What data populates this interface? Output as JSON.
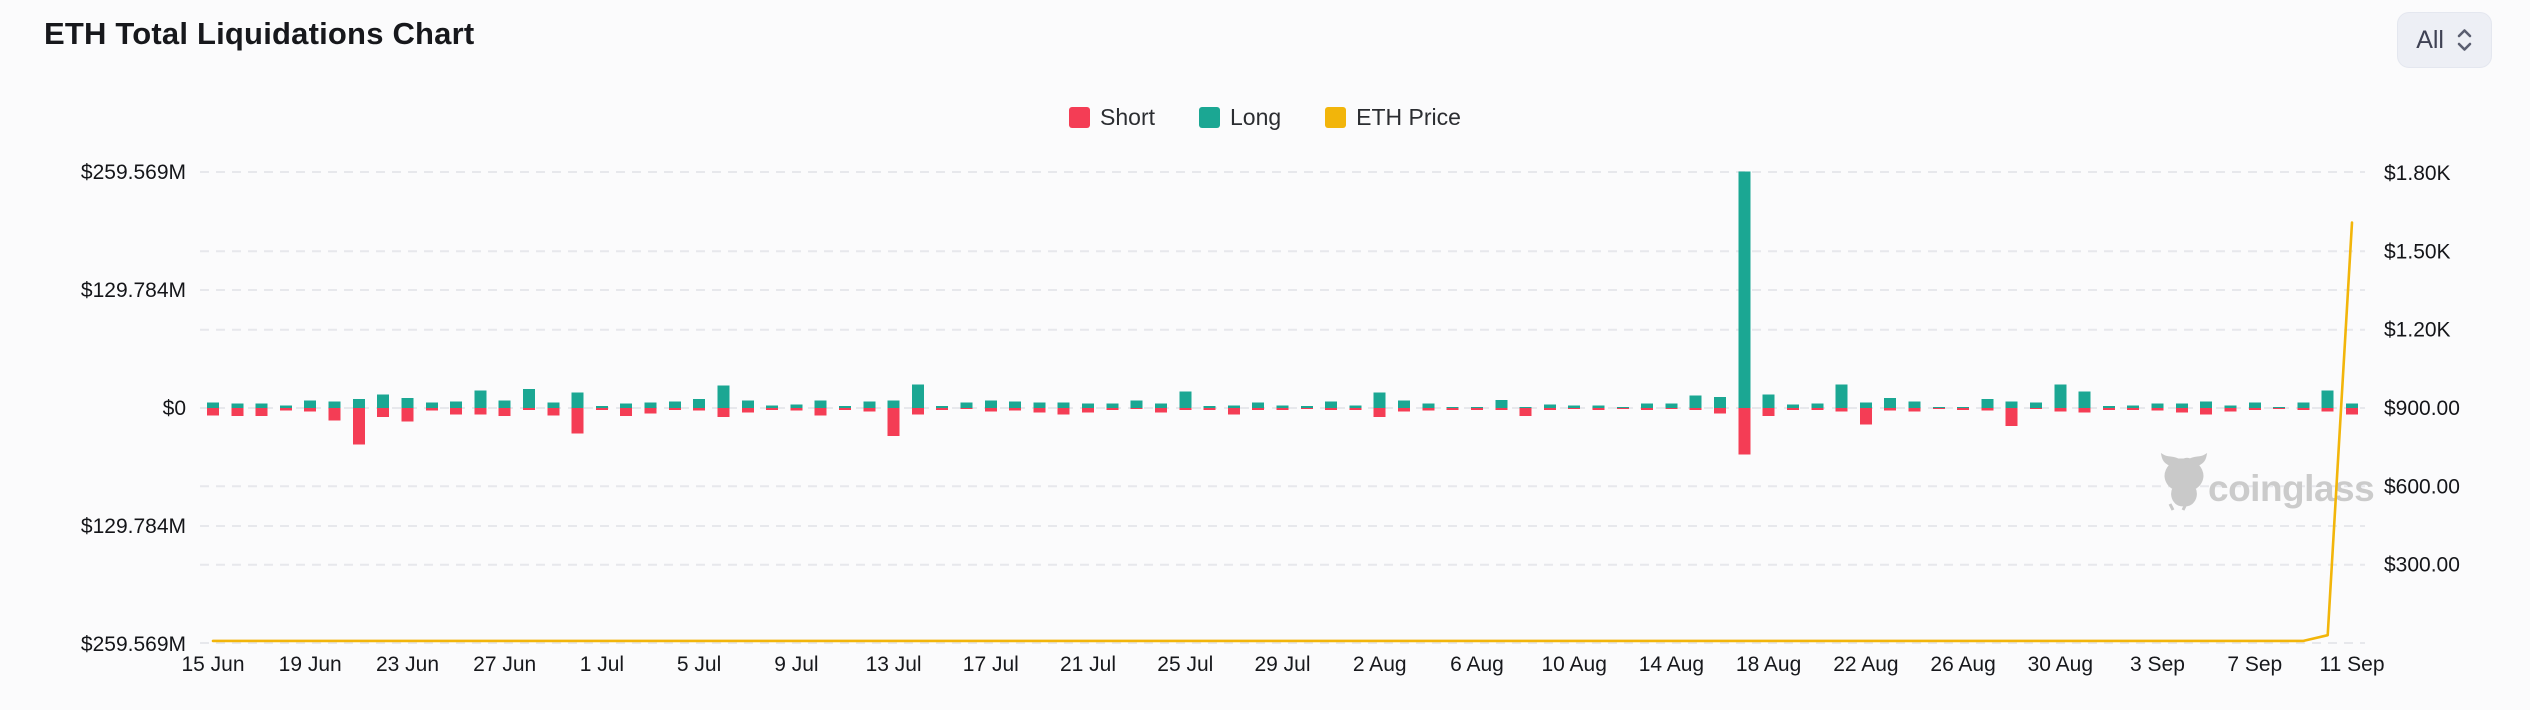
{
  "header": {
    "title": "ETH Total Liquidations Chart",
    "range_selector": {
      "value": "All"
    }
  },
  "legend": [
    {
      "label": "Short",
      "color": "#f43d55"
    },
    {
      "label": "Long",
      "color": "#1ba793"
    },
    {
      "label": "ETH Price",
      "color": "#f2b50a"
    }
  ],
  "watermark": {
    "text": "coinglass"
  },
  "colors": {
    "short": "#f43d55",
    "long": "#1ba793",
    "price": "#f2b50a",
    "background": "#fbfbfc",
    "grid": "#e7e8ec"
  },
  "chart_data": {
    "type": "bar",
    "subtype": "stacked-bidirectional-bars-with-line",
    "title": "ETH Total Liquidations Chart",
    "grid": true,
    "legend_position": "top-center",
    "x_start_date": "15 Jun",
    "x_end_date": "11 Sep",
    "num_points": 89,
    "x_tick_labels": [
      "15 Jun",
      "19 Jun",
      "23 Jun",
      "27 Jun",
      "1 Jul",
      "5 Jul",
      "9 Jul",
      "13 Jul",
      "17 Jul",
      "21 Jul",
      "25 Jul",
      "29 Jul",
      "2 Aug",
      "6 Aug",
      "10 Aug",
      "14 Aug",
      "18 Aug",
      "22 Aug",
      "26 Aug",
      "30 Aug",
      "3 Sep",
      "7 Sep",
      "11 Sep"
    ],
    "x_tick_day_indices": [
      0,
      4,
      8,
      12,
      16,
      20,
      24,
      28,
      32,
      36,
      40,
      44,
      48,
      52,
      56,
      60,
      64,
      68,
      72,
      76,
      80,
      84,
      88
    ],
    "left_axis": {
      "unit": "USD liquidations",
      "tick_labels": [
        "$259.569M",
        "$129.784M",
        "$0",
        "$129.784M",
        "$259.569M"
      ],
      "tick_values_m": [
        259.569,
        129.784,
        0,
        -129.784,
        -259.569
      ],
      "max_m": 259.569
    },
    "right_axis": {
      "unit": "ETH price USD",
      "tick_labels": [
        "$1.80K",
        "$1.50K",
        "$1.20K",
        "$900.00",
        "$600.00",
        "$300.00"
      ],
      "tick_values": [
        1800,
        1500,
        1200,
        900,
        600,
        300
      ],
      "range": [
        0,
        1800
      ]
    },
    "series": [
      {
        "name": "Long",
        "unit": "M USD",
        "direction": "up",
        "values": [
          6,
          5,
          5,
          3,
          8,
          7,
          10,
          15,
          11,
          6,
          7,
          19,
          8,
          21,
          6,
          17,
          2,
          5,
          6,
          7,
          10,
          25,
          8,
          3,
          4,
          8,
          2,
          7,
          8,
          26,
          2,
          6,
          8,
          7,
          6,
          6,
          5,
          5,
          8,
          5,
          18,
          2,
          3,
          6,
          3,
          2,
          7,
          3,
          17,
          8,
          5,
          1,
          1,
          9,
          1,
          4,
          3,
          3,
          1,
          5,
          5,
          14,
          12,
          260,
          15,
          4,
          5,
          26,
          6,
          11,
          7,
          1,
          1,
          10,
          7,
          6,
          26,
          18,
          2,
          3,
          5,
          5,
          7,
          3,
          6,
          1,
          6,
          19,
          5
        ]
      },
      {
        "name": "Short",
        "unit": "M USD",
        "direction": "down",
        "values": [
          8,
          9,
          9,
          3,
          4,
          14,
          40,
          10,
          15,
          3,
          7,
          7,
          9,
          2,
          8,
          28,
          2,
          9,
          6,
          2,
          3,
          10,
          5,
          2,
          3,
          8,
          2,
          4,
          31,
          7,
          2,
          1,
          4,
          3,
          5,
          7,
          5,
          2,
          1,
          5,
          2,
          2,
          7,
          2,
          2,
          1,
          2,
          2,
          10,
          4,
          3,
          2,
          2,
          2,
          9,
          2,
          1,
          2,
          1,
          2,
          1,
          2,
          6,
          51,
          9,
          2,
          2,
          4,
          18,
          3,
          4,
          1,
          2,
          3,
          20,
          1,
          4,
          5,
          2,
          2,
          3,
          5,
          7,
          4,
          2,
          1,
          2,
          4,
          7
        ]
      },
      {
        "name": "ETH Price",
        "unit": "USD",
        "axis": "right",
        "values": [
          8,
          8,
          8,
          8,
          8,
          8,
          8,
          8,
          8,
          8,
          8,
          8,
          8,
          8,
          8,
          8,
          8,
          8,
          8,
          8,
          8,
          8,
          8,
          8,
          8,
          8,
          8,
          8,
          8,
          8,
          8,
          8,
          8,
          8,
          8,
          8,
          8,
          8,
          8,
          8,
          8,
          8,
          8,
          8,
          8,
          8,
          8,
          8,
          8,
          8,
          8,
          8,
          8,
          8,
          8,
          8,
          8,
          8,
          8,
          8,
          8,
          8,
          8,
          8,
          8,
          8,
          8,
          8,
          8,
          8,
          8,
          8,
          8,
          8,
          8,
          8,
          8,
          8,
          8,
          8,
          8,
          8,
          8,
          8,
          8,
          8,
          8,
          30,
          1610
        ]
      }
    ],
    "notable_points": [
      {
        "date": "17 Aug",
        "long_m": 260,
        "short_m": 51,
        "note": "largest long liquidation spike, reaches $259.569M gridline"
      },
      {
        "date": "11 Sep",
        "eth_price": 1610,
        "note": "ETH price line spikes vertically at right edge to ~$1.6K"
      }
    ]
  }
}
